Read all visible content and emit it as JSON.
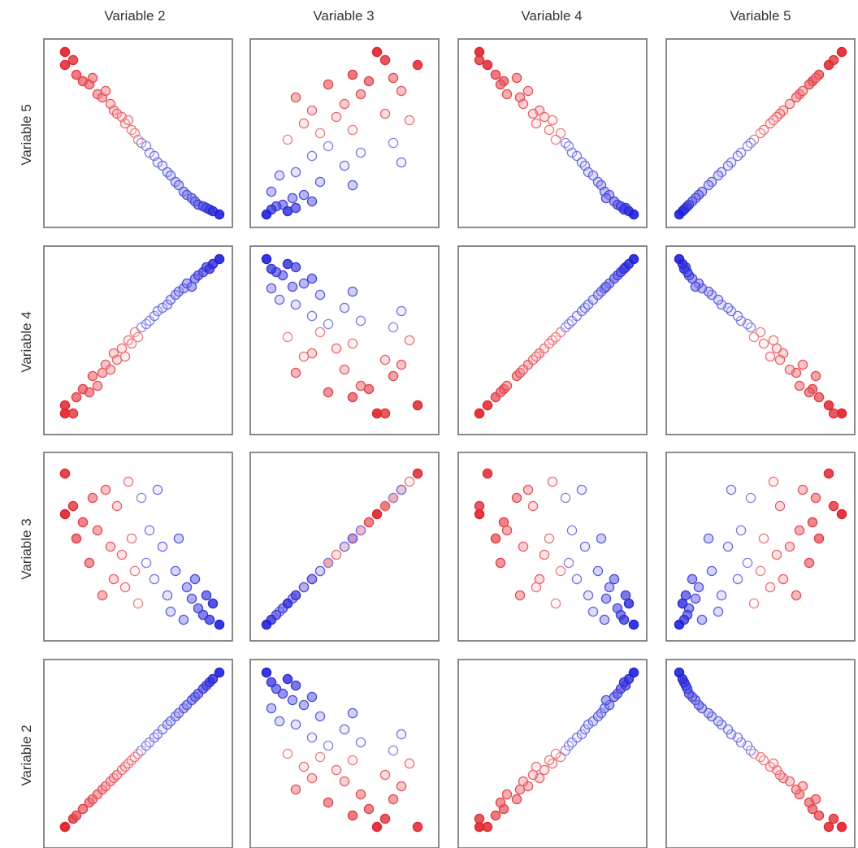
{
  "chart_data": {
    "type": "scatter",
    "variables": [
      "Variable 2",
      "Variable 3",
      "Variable 4",
      "Variable 5"
    ],
    "column_labels": [
      "Variable 2",
      "Variable 3",
      "Variable 4",
      "Variable 5"
    ],
    "row_labels": [
      "Variable 5",
      "Variable 4",
      "Variable 3",
      "Variable 2"
    ],
    "color_scale": {
      "low": "#e0202a",
      "mid": "#ffffff",
      "high": "#2020d6"
    },
    "color_note": "points colored from red (low) through white to blue (high) by observation",
    "grid": false,
    "observations": [
      {
        "v2": 0.05,
        "v3": 0.7,
        "v4": 0.05,
        "v5": 1.0,
        "c": 0.0
      },
      {
        "v2": 0.05,
        "v3": 0.95,
        "v4": 0.1,
        "v5": 0.92,
        "c": 0.02
      },
      {
        "v2": 0.1,
        "v3": 0.75,
        "v4": 0.05,
        "v5": 0.95,
        "c": 0.05
      },
      {
        "v2": 0.12,
        "v3": 0.55,
        "v4": 0.15,
        "v5": 0.86,
        "c": 0.1
      },
      {
        "v2": 0.16,
        "v3": 0.65,
        "v4": 0.2,
        "v5": 0.82,
        "c": 0.12
      },
      {
        "v2": 0.2,
        "v3": 0.4,
        "v4": 0.18,
        "v5": 0.8,
        "c": 0.15
      },
      {
        "v2": 0.22,
        "v3": 0.8,
        "v4": 0.28,
        "v5": 0.84,
        "c": 0.18
      },
      {
        "v2": 0.25,
        "v3": 0.6,
        "v4": 0.22,
        "v5": 0.74,
        "c": 0.2
      },
      {
        "v2": 0.28,
        "v3": 0.2,
        "v4": 0.3,
        "v5": 0.72,
        "c": 0.22
      },
      {
        "v2": 0.3,
        "v3": 0.85,
        "v4": 0.35,
        "v5": 0.76,
        "c": 0.25
      },
      {
        "v2": 0.33,
        "v3": 0.5,
        "v4": 0.32,
        "v5": 0.68,
        "c": 0.28
      },
      {
        "v2": 0.35,
        "v3": 0.3,
        "v4": 0.42,
        "v5": 0.64,
        "c": 0.3
      },
      {
        "v2": 0.37,
        "v3": 0.75,
        "v4": 0.38,
        "v5": 0.62,
        "c": 0.32
      },
      {
        "v2": 0.4,
        "v3": 0.45,
        "v4": 0.45,
        "v5": 0.6,
        "c": 0.35
      },
      {
        "v2": 0.42,
        "v3": 0.25,
        "v4": 0.4,
        "v5": 0.56,
        "c": 0.38
      },
      {
        "v2": 0.44,
        "v3": 0.9,
        "v4": 0.5,
        "v5": 0.58,
        "c": 0.4
      },
      {
        "v2": 0.46,
        "v3": 0.55,
        "v4": 0.48,
        "v5": 0.52,
        "c": 0.42
      },
      {
        "v2": 0.48,
        "v3": 0.35,
        "v4": 0.55,
        "v5": 0.5,
        "c": 0.45
      },
      {
        "v2": 0.5,
        "v3": 0.15,
        "v4": 0.52,
        "v5": 0.46,
        "c": 0.48
      },
      {
        "v2": 0.52,
        "v3": 0.8,
        "v4": 0.58,
        "v5": 0.44,
        "c": 0.5
      },
      {
        "v2": 0.55,
        "v3": 0.4,
        "v4": 0.6,
        "v5": 0.42,
        "c": 0.52
      },
      {
        "v2": 0.57,
        "v3": 0.6,
        "v4": 0.62,
        "v5": 0.38,
        "c": 0.55
      },
      {
        "v2": 0.6,
        "v3": 0.3,
        "v4": 0.65,
        "v5": 0.36,
        "c": 0.58
      },
      {
        "v2": 0.62,
        "v3": 0.85,
        "v4": 0.68,
        "v5": 0.32,
        "c": 0.6
      },
      {
        "v2": 0.65,
        "v3": 0.5,
        "v4": 0.7,
        "v5": 0.3,
        "c": 0.62
      },
      {
        "v2": 0.68,
        "v3": 0.2,
        "v4": 0.72,
        "v5": 0.26,
        "c": 0.65
      },
      {
        "v2": 0.7,
        "v3": 0.1,
        "v4": 0.75,
        "v5": 0.24,
        "c": 0.68
      },
      {
        "v2": 0.73,
        "v3": 0.35,
        "v4": 0.78,
        "v5": 0.2,
        "c": 0.7
      },
      {
        "v2": 0.75,
        "v3": 0.55,
        "v4": 0.8,
        "v5": 0.18,
        "c": 0.72
      },
      {
        "v2": 0.78,
        "v3": 0.05,
        "v4": 0.82,
        "v5": 0.14,
        "c": 0.75
      },
      {
        "v2": 0.8,
        "v3": 0.25,
        "v4": 0.85,
        "v5": 0.12,
        "c": 0.78
      },
      {
        "v2": 0.83,
        "v3": 0.18,
        "v4": 0.83,
        "v5": 0.1,
        "c": 0.8
      },
      {
        "v2": 0.85,
        "v3": 0.3,
        "v4": 0.88,
        "v5": 0.08,
        "c": 0.82
      },
      {
        "v2": 0.87,
        "v3": 0.12,
        "v4": 0.9,
        "v5": 0.06,
        "c": 0.85
      },
      {
        "v2": 0.9,
        "v3": 0.08,
        "v4": 0.92,
        "v5": 0.05,
        "c": 0.88
      },
      {
        "v2": 0.92,
        "v3": 0.2,
        "v4": 0.95,
        "v5": 0.04,
        "c": 0.9
      },
      {
        "v2": 0.94,
        "v3": 0.05,
        "v4": 0.94,
        "v5": 0.03,
        "c": 0.93
      },
      {
        "v2": 0.96,
        "v3": 0.15,
        "v4": 0.97,
        "v5": 0.02,
        "c": 0.96
      },
      {
        "v2": 1.0,
        "v3": 0.02,
        "v4": 1.0,
        "v5": 0.0,
        "c": 1.0
      }
    ]
  }
}
